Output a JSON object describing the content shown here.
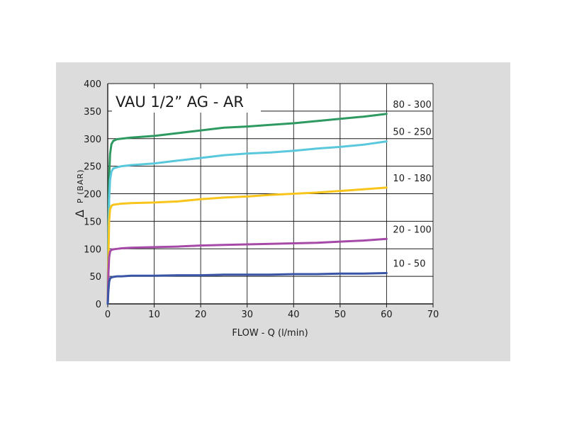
{
  "chart_data": {
    "type": "line",
    "title": "VAU 1/2” AG - AR",
    "xlabel": "FLOW - Q (l/min)",
    "ylabel_symbol": "Δ",
    "ylabel": "P (BAR)",
    "xlim": [
      0,
      70
    ],
    "ylim": [
      0,
      400
    ],
    "x_ticks": [
      0,
      10,
      20,
      30,
      40,
      50,
      60,
      70
    ],
    "y_ticks": [
      0,
      50,
      100,
      150,
      200,
      250,
      300,
      350,
      400
    ],
    "grid": true,
    "background": "#ffffff",
    "series": [
      {
        "name": "80 - 300",
        "color": "#2e9a62",
        "x": [
          0,
          0.15,
          0.3,
          0.5,
          0.8,
          1.2,
          2,
          3,
          5,
          10,
          15,
          20,
          25,
          30,
          35,
          40,
          45,
          50,
          55,
          60
        ],
        "y": [
          0,
          140,
          230,
          272,
          290,
          296,
          299,
          300,
          302,
          305,
          310,
          315,
          320,
          322,
          325,
          328,
          332,
          336,
          340,
          345
        ]
      },
      {
        "name": "50 - 250",
        "color": "#5ac8dc",
        "x": [
          0,
          0.15,
          0.3,
          0.5,
          0.8,
          1.2,
          2,
          3,
          5,
          10,
          15,
          20,
          25,
          30,
          35,
          40,
          45,
          50,
          55,
          60
        ],
        "y": [
          0,
          120,
          190,
          225,
          240,
          246,
          248,
          250,
          252,
          255,
          260,
          265,
          270,
          273,
          275,
          278,
          282,
          285,
          289,
          295
        ]
      },
      {
        "name": "10 - 180",
        "color": "#f8c51c",
        "x": [
          0,
          0.15,
          0.3,
          0.5,
          0.8,
          1.2,
          2,
          3,
          5,
          10,
          15,
          20,
          25,
          30,
          35,
          40,
          45,
          50,
          55,
          60
        ],
        "y": [
          0,
          90,
          150,
          172,
          178,
          180,
          181,
          182,
          183,
          184,
          186,
          190,
          193,
          195,
          198,
          200,
          202,
          205,
          208,
          211
        ]
      },
      {
        "name": "20 - 100",
        "color": "#a64aa8",
        "x": [
          0,
          0.15,
          0.3,
          0.5,
          0.8,
          1.2,
          2,
          3,
          5,
          10,
          15,
          20,
          25,
          30,
          35,
          40,
          45,
          50,
          55,
          60
        ],
        "y": [
          0,
          55,
          85,
          95,
          98,
          99,
          100,
          101,
          102,
          103,
          104,
          106,
          107,
          108,
          109,
          110,
          111,
          113,
          115,
          118
        ]
      },
      {
        "name": "10 - 50",
        "color": "#3a55a5",
        "x": [
          0,
          0.15,
          0.3,
          0.5,
          0.8,
          1.2,
          2,
          3,
          5,
          10,
          15,
          20,
          25,
          30,
          35,
          40,
          45,
          50,
          55,
          60
        ],
        "y": [
          0,
          25,
          40,
          46,
          48,
          49,
          50,
          50,
          51,
          51,
          52,
          52,
          53,
          53,
          53,
          54,
          54,
          55,
          55,
          56
        ]
      }
    ]
  }
}
